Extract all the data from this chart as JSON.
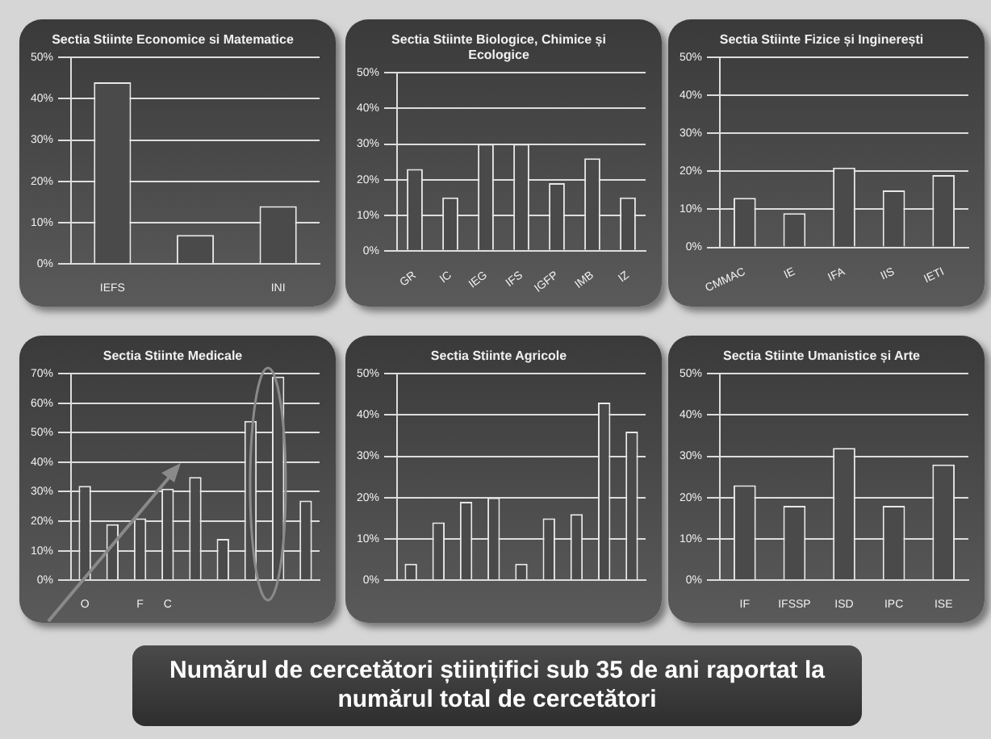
{
  "chart_data": [
    {
      "type": "bar",
      "title": "Sectia Stiinte Economice si Matematice",
      "categories": [
        "IEFS",
        null,
        "INI"
      ],
      "values": [
        44,
        7,
        14
      ],
      "color": "#4a4a4a",
      "ylim": [
        0,
        50
      ],
      "yticks": [
        {
          "value": 0,
          "label": "0%"
        },
        {
          "value": 10,
          "label": "10%"
        },
        {
          "value": 20,
          "label": "20%"
        },
        {
          "value": 30,
          "label": "30%"
        },
        {
          "value": 40,
          "label": "40%"
        },
        {
          "value": 50,
          "label": "50%"
        }
      ],
      "grid": "y"
    },
    {
      "type": "bar",
      "title": "Sectia Stiinte Biologice, Chimice și Ecologice",
      "categories": [
        "GR",
        "IC",
        "IEG",
        "IFS",
        "IGFP",
        "IMB",
        "IZ"
      ],
      "values": [
        23,
        15,
        30,
        30,
        19,
        26,
        15
      ],
      "color": "#4a4a4a",
      "ylim": [
        0,
        50
      ],
      "yticks": [
        {
          "value": 0,
          "label": "0%"
        },
        {
          "value": 10,
          "label": "10%"
        },
        {
          "value": 20,
          "label": "20%"
        },
        {
          "value": 30,
          "label": "30%"
        },
        {
          "value": 40,
          "label": "40%"
        },
        {
          "value": 50,
          "label": "50%"
        }
      ],
      "grid": "y"
    },
    {
      "type": "bar",
      "title": "Sectia Stiinte Fizice și Inginerești",
      "categories": [
        "CMMAC",
        "IE",
        "IFA",
        "IIS",
        "IETI"
      ],
      "values": [
        13,
        9,
        21,
        15,
        19
      ],
      "color": "#4a4a4a",
      "ylim": [
        0,
        50
      ],
      "yticks": [
        {
          "value": 0,
          "label": "0%"
        },
        {
          "value": 10,
          "label": "10%"
        },
        {
          "value": 20,
          "label": "20%"
        },
        {
          "value": 30,
          "label": "30%"
        },
        {
          "value": 40,
          "label": "40%"
        },
        {
          "value": 50,
          "label": "50%"
        }
      ],
      "grid": "y"
    },
    {
      "type": "bar",
      "title": "Sectia Stiinte Medicale",
      "categories": [
        "O",
        null,
        "F",
        "C",
        null,
        null,
        null,
        null,
        null
      ],
      "values": [
        32,
        19,
        21,
        31,
        35,
        14,
        54,
        69,
        27
      ],
      "color": "#4a4a4a",
      "ylim": [
        0,
        70
      ],
      "yticks": [
        {
          "value": 0,
          "label": "0%"
        },
        {
          "value": 10,
          "label": "10%"
        },
        {
          "value": 20,
          "label": "20%"
        },
        {
          "value": 30,
          "label": "30%"
        },
        {
          "value": 40,
          "label": "40%"
        },
        {
          "value": 50,
          "label": "50%"
        },
        {
          "value": 60,
          "label": "60%"
        },
        {
          "value": 70,
          "label": "70%"
        }
      ],
      "grid": "y"
    },
    {
      "type": "bar",
      "title": "Sectia Stiinte Agricole",
      "categories": [
        null,
        null,
        null,
        null,
        null,
        null,
        null,
        null,
        null
      ],
      "values": [
        4,
        14,
        19,
        20,
        4,
        15,
        16,
        43,
        36
      ],
      "color": "#4a4a4a",
      "ylim": [
        0,
        50
      ],
      "yticks": [
        {
          "value": 0,
          "label": "0%"
        },
        {
          "value": 10,
          "label": "10%"
        },
        {
          "value": 20,
          "label": "20%"
        },
        {
          "value": 30,
          "label": "30%"
        },
        {
          "value": 40,
          "label": "40%"
        },
        {
          "value": 50,
          "label": "50%"
        }
      ],
      "grid": "y",
      "annotations": [
        "Numărul de cercetători științifici sub 35 de ani raportat la numărul total de cercetători"
      ]
    },
    {
      "type": "bar",
      "title": "Sectia Stiinte Umanistice și Arte",
      "categories": [
        "IF",
        "IFSSP",
        "ISD",
        "IPC",
        "ISE"
      ],
      "values": [
        23,
        18,
        32,
        18,
        28
      ],
      "color": "#4a4a4a",
      "ylim": [
        0,
        50
      ],
      "yticks": [
        {
          "value": 0,
          "label": "0%"
        },
        {
          "value": 10,
          "label": "10%"
        },
        {
          "value": 20,
          "label": "20%"
        },
        {
          "value": 30,
          "label": "30%"
        },
        {
          "value": 40,
          "label": "40%"
        },
        {
          "value": 50,
          "label": "50%"
        }
      ],
      "grid": "y"
    }
  ]
}
